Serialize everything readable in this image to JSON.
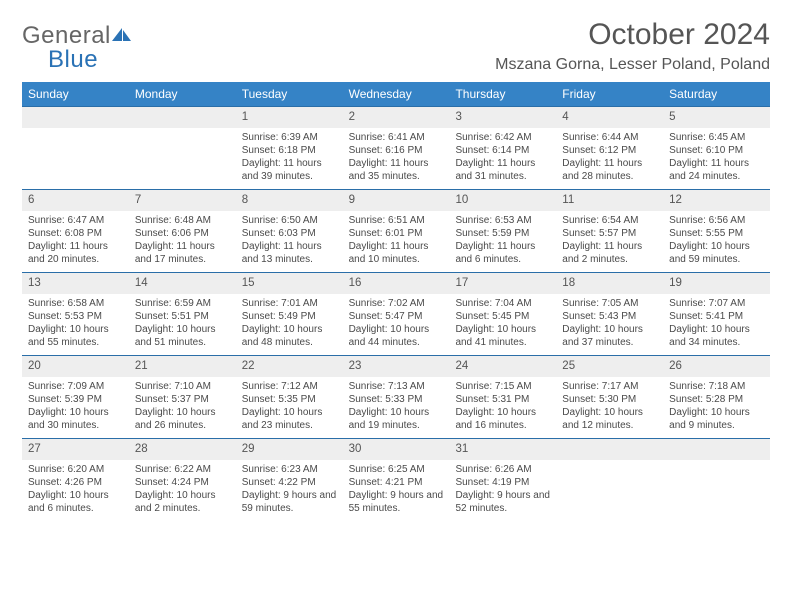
{
  "brand": {
    "part1": "General",
    "part2": "Blue"
  },
  "title": "October 2024",
  "location": "Mszana Gorna, Lesser Poland, Poland",
  "colors": {
    "header_bg": "#3583c6",
    "header_text": "#ffffff",
    "daynum_bg": "#eeeeee",
    "border": "#2a6ea8",
    "text": "#4a4a4a",
    "title": "#555555"
  },
  "day_headers": [
    "Sunday",
    "Monday",
    "Tuesday",
    "Wednesday",
    "Thursday",
    "Friday",
    "Saturday"
  ],
  "weeks": [
    [
      {
        "day": "",
        "sunrise": "",
        "sunset": "",
        "daylight": ""
      },
      {
        "day": "",
        "sunrise": "",
        "sunset": "",
        "daylight": ""
      },
      {
        "day": "1",
        "sunrise": "Sunrise: 6:39 AM",
        "sunset": "Sunset: 6:18 PM",
        "daylight": "Daylight: 11 hours and 39 minutes."
      },
      {
        "day": "2",
        "sunrise": "Sunrise: 6:41 AM",
        "sunset": "Sunset: 6:16 PM",
        "daylight": "Daylight: 11 hours and 35 minutes."
      },
      {
        "day": "3",
        "sunrise": "Sunrise: 6:42 AM",
        "sunset": "Sunset: 6:14 PM",
        "daylight": "Daylight: 11 hours and 31 minutes."
      },
      {
        "day": "4",
        "sunrise": "Sunrise: 6:44 AM",
        "sunset": "Sunset: 6:12 PM",
        "daylight": "Daylight: 11 hours and 28 minutes."
      },
      {
        "day": "5",
        "sunrise": "Sunrise: 6:45 AM",
        "sunset": "Sunset: 6:10 PM",
        "daylight": "Daylight: 11 hours and 24 minutes."
      }
    ],
    [
      {
        "day": "6",
        "sunrise": "Sunrise: 6:47 AM",
        "sunset": "Sunset: 6:08 PM",
        "daylight": "Daylight: 11 hours and 20 minutes."
      },
      {
        "day": "7",
        "sunrise": "Sunrise: 6:48 AM",
        "sunset": "Sunset: 6:06 PM",
        "daylight": "Daylight: 11 hours and 17 minutes."
      },
      {
        "day": "8",
        "sunrise": "Sunrise: 6:50 AM",
        "sunset": "Sunset: 6:03 PM",
        "daylight": "Daylight: 11 hours and 13 minutes."
      },
      {
        "day": "9",
        "sunrise": "Sunrise: 6:51 AM",
        "sunset": "Sunset: 6:01 PM",
        "daylight": "Daylight: 11 hours and 10 minutes."
      },
      {
        "day": "10",
        "sunrise": "Sunrise: 6:53 AM",
        "sunset": "Sunset: 5:59 PM",
        "daylight": "Daylight: 11 hours and 6 minutes."
      },
      {
        "day": "11",
        "sunrise": "Sunrise: 6:54 AM",
        "sunset": "Sunset: 5:57 PM",
        "daylight": "Daylight: 11 hours and 2 minutes."
      },
      {
        "day": "12",
        "sunrise": "Sunrise: 6:56 AM",
        "sunset": "Sunset: 5:55 PM",
        "daylight": "Daylight: 10 hours and 59 minutes."
      }
    ],
    [
      {
        "day": "13",
        "sunrise": "Sunrise: 6:58 AM",
        "sunset": "Sunset: 5:53 PM",
        "daylight": "Daylight: 10 hours and 55 minutes."
      },
      {
        "day": "14",
        "sunrise": "Sunrise: 6:59 AM",
        "sunset": "Sunset: 5:51 PM",
        "daylight": "Daylight: 10 hours and 51 minutes."
      },
      {
        "day": "15",
        "sunrise": "Sunrise: 7:01 AM",
        "sunset": "Sunset: 5:49 PM",
        "daylight": "Daylight: 10 hours and 48 minutes."
      },
      {
        "day": "16",
        "sunrise": "Sunrise: 7:02 AM",
        "sunset": "Sunset: 5:47 PM",
        "daylight": "Daylight: 10 hours and 44 minutes."
      },
      {
        "day": "17",
        "sunrise": "Sunrise: 7:04 AM",
        "sunset": "Sunset: 5:45 PM",
        "daylight": "Daylight: 10 hours and 41 minutes."
      },
      {
        "day": "18",
        "sunrise": "Sunrise: 7:05 AM",
        "sunset": "Sunset: 5:43 PM",
        "daylight": "Daylight: 10 hours and 37 minutes."
      },
      {
        "day": "19",
        "sunrise": "Sunrise: 7:07 AM",
        "sunset": "Sunset: 5:41 PM",
        "daylight": "Daylight: 10 hours and 34 minutes."
      }
    ],
    [
      {
        "day": "20",
        "sunrise": "Sunrise: 7:09 AM",
        "sunset": "Sunset: 5:39 PM",
        "daylight": "Daylight: 10 hours and 30 minutes."
      },
      {
        "day": "21",
        "sunrise": "Sunrise: 7:10 AM",
        "sunset": "Sunset: 5:37 PM",
        "daylight": "Daylight: 10 hours and 26 minutes."
      },
      {
        "day": "22",
        "sunrise": "Sunrise: 7:12 AM",
        "sunset": "Sunset: 5:35 PM",
        "daylight": "Daylight: 10 hours and 23 minutes."
      },
      {
        "day": "23",
        "sunrise": "Sunrise: 7:13 AM",
        "sunset": "Sunset: 5:33 PM",
        "daylight": "Daylight: 10 hours and 19 minutes."
      },
      {
        "day": "24",
        "sunrise": "Sunrise: 7:15 AM",
        "sunset": "Sunset: 5:31 PM",
        "daylight": "Daylight: 10 hours and 16 minutes."
      },
      {
        "day": "25",
        "sunrise": "Sunrise: 7:17 AM",
        "sunset": "Sunset: 5:30 PM",
        "daylight": "Daylight: 10 hours and 12 minutes."
      },
      {
        "day": "26",
        "sunrise": "Sunrise: 7:18 AM",
        "sunset": "Sunset: 5:28 PM",
        "daylight": "Daylight: 10 hours and 9 minutes."
      }
    ],
    [
      {
        "day": "27",
        "sunrise": "Sunrise: 6:20 AM",
        "sunset": "Sunset: 4:26 PM",
        "daylight": "Daylight: 10 hours and 6 minutes."
      },
      {
        "day": "28",
        "sunrise": "Sunrise: 6:22 AM",
        "sunset": "Sunset: 4:24 PM",
        "daylight": "Daylight: 10 hours and 2 minutes."
      },
      {
        "day": "29",
        "sunrise": "Sunrise: 6:23 AM",
        "sunset": "Sunset: 4:22 PM",
        "daylight": "Daylight: 9 hours and 59 minutes."
      },
      {
        "day": "30",
        "sunrise": "Sunrise: 6:25 AM",
        "sunset": "Sunset: 4:21 PM",
        "daylight": "Daylight: 9 hours and 55 minutes."
      },
      {
        "day": "31",
        "sunrise": "Sunrise: 6:26 AM",
        "sunset": "Sunset: 4:19 PM",
        "daylight": "Daylight: 9 hours and 52 minutes."
      },
      {
        "day": "",
        "sunrise": "",
        "sunset": "",
        "daylight": ""
      },
      {
        "day": "",
        "sunrise": "",
        "sunset": "",
        "daylight": ""
      }
    ]
  ]
}
